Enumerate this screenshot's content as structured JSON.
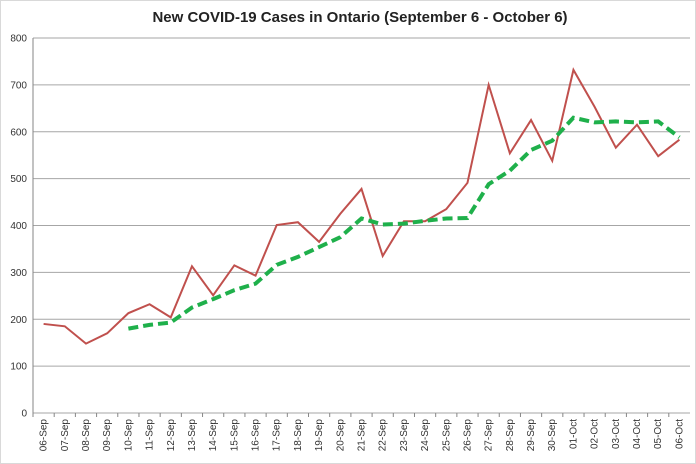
{
  "chart_data": {
    "type": "line",
    "title": "New COVID-19 Cases in Ontario (September 6 - October 6)",
    "categories": [
      "06-Sep",
      "07-Sep",
      "08-Sep",
      "09-Sep",
      "10-Sep",
      "11-Sep",
      "12-Sep",
      "13-Sep",
      "14-Sep",
      "15-Sep",
      "16-Sep",
      "17-Sep",
      "18-Sep",
      "19-Sep",
      "20-Sep",
      "21-Sep",
      "22-Sep",
      "23-Sep",
      "24-Sep",
      "25-Sep",
      "26-Sep",
      "27-Sep",
      "28-Sep",
      "29-Sep",
      "30-Sep",
      "01-Oct",
      "02-Oct",
      "03-Oct",
      "04-Oct",
      "05-Oct",
      "06-Oct"
    ],
    "series": [
      {
        "color": "#c0504d",
        "dashed": false,
        "values": [
          190,
          185,
          148,
          170,
          213,
          232,
          204,
          313,
          251,
          315,
          293,
          401,
          407,
          365,
          425,
          478,
          335,
          409,
          409,
          435,
          491,
          700,
          554,
          625,
          538,
          732,
          653,
          566,
          615,
          548,
          583
        ]
      },
      {
        "color": "#1fb04b",
        "dashed": true,
        "values": [
          null,
          null,
          null,
          null,
          180,
          188,
          193,
          225,
          243,
          262,
          276,
          316,
          333,
          354,
          375,
          415,
          402,
          404,
          410,
          415,
          416,
          488,
          517,
          561,
          581,
          630,
          620,
          622,
          620,
          622,
          588
        ]
      }
    ],
    "ylim": [
      0,
      800
    ],
    "yticks": [
      0,
      100,
      200,
      300,
      400,
      500,
      600,
      700,
      800
    ],
    "grid": true
  }
}
